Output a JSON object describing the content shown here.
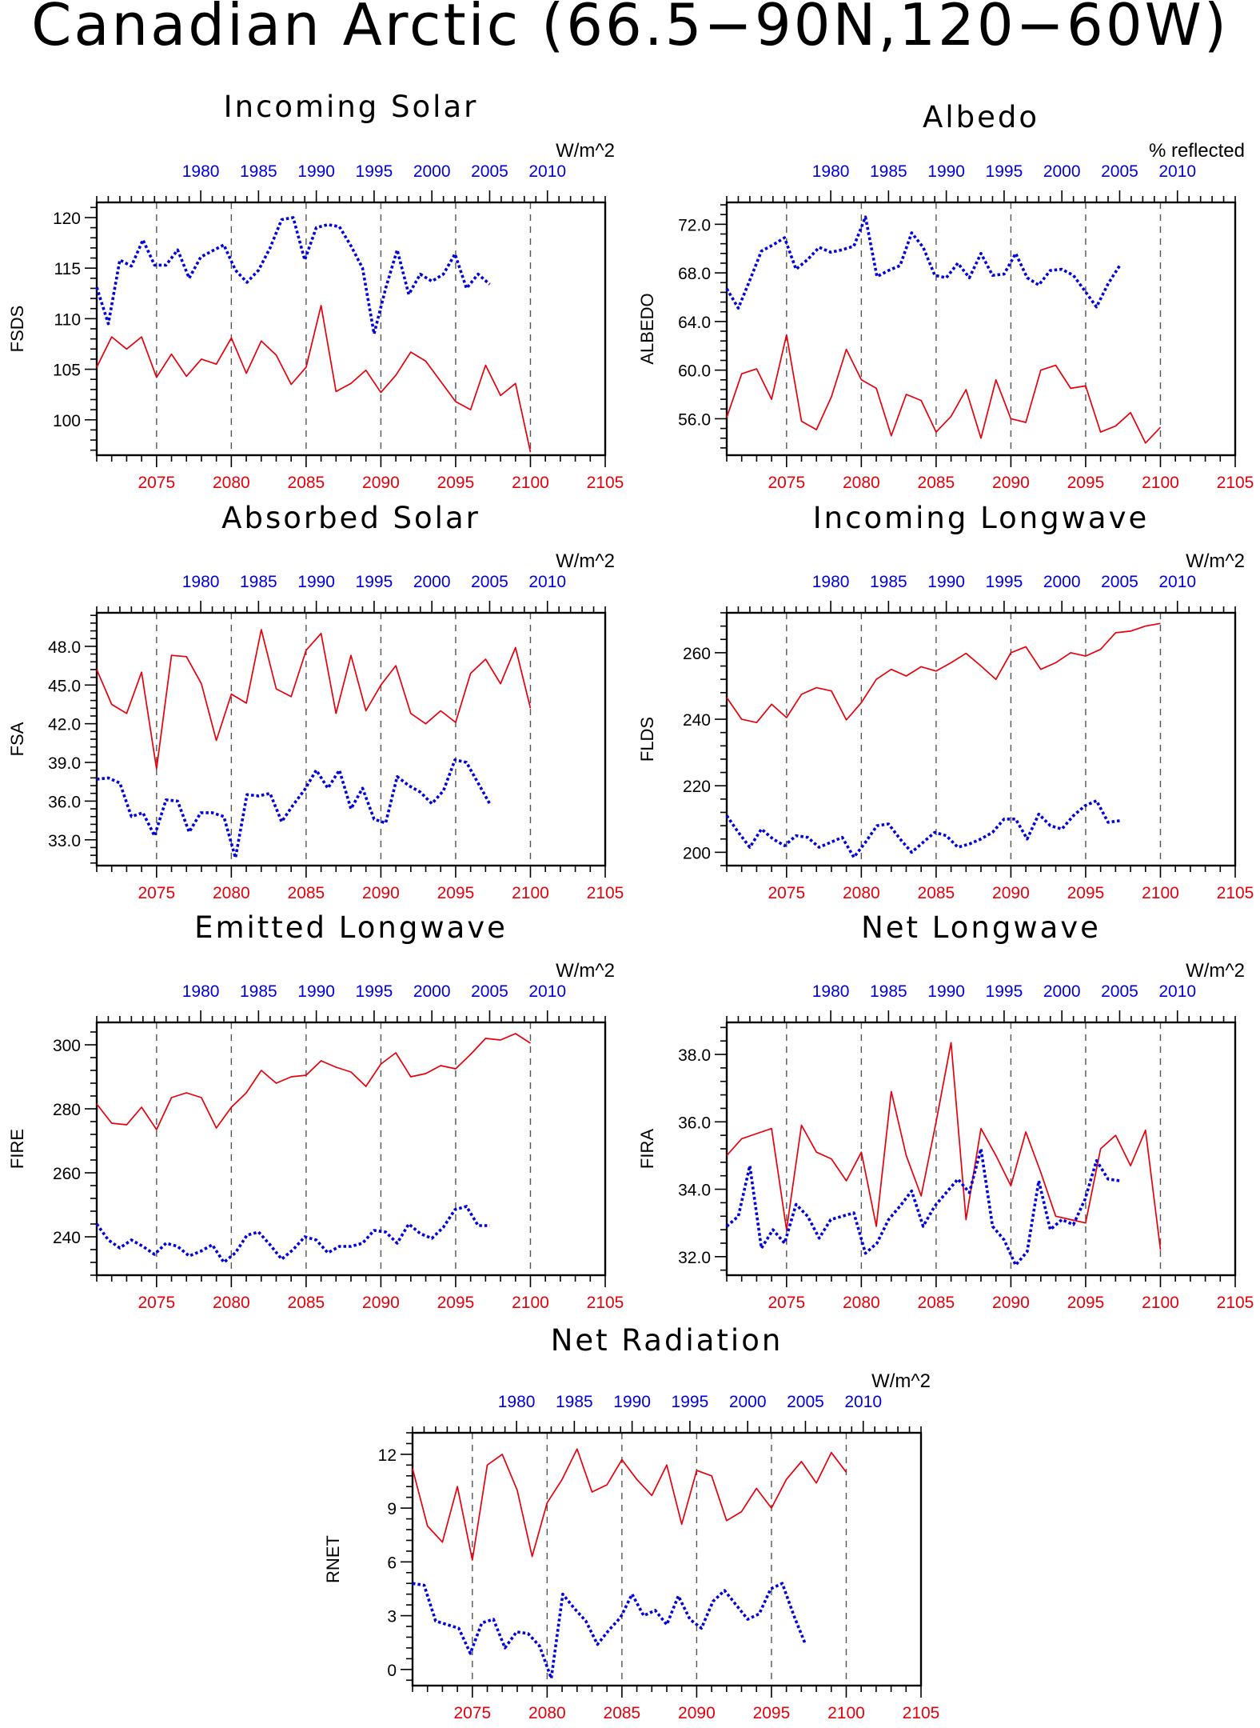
{
  "figure_title": "Canadian Arctic (66.5−90N,120−60W)",
  "colors": {
    "future": "#e8000b",
    "historical": "#0000dd",
    "axis": "#000000"
  },
  "chart_data": [
    {
      "id": "fsds",
      "type": "line",
      "title": "Incoming Solar",
      "units": "W/m^2",
      "ylabel": "FSDS",
      "ylim": [
        96.5,
        121.5
      ],
      "yticks": [
        100,
        105,
        110,
        115,
        120
      ],
      "ydecimals": 0,
      "top_axis": {
        "range": [
          1971,
          2015
        ],
        "ticks": [
          1980,
          1985,
          1990,
          1995,
          2000,
          2005,
          2010
        ]
      },
      "bottom_axis": {
        "range": [
          2071,
          2105
        ],
        "ticks": [
          2075,
          2080,
          2085,
          2090,
          2095,
          2100,
          2105
        ]
      },
      "series": [
        {
          "style": "future",
          "x_start": 2071,
          "values": [
            105.2,
            108.2,
            107.0,
            108.2,
            104.2,
            106.5,
            104.3,
            106.0,
            105.5,
            108.1,
            104.6,
            107.8,
            106.4,
            103.5,
            105.2,
            111.3,
            102.8,
            103.6,
            104.9,
            102.7,
            104.4,
            106.7,
            105.8,
            103.8,
            101.8,
            101.0,
            105.4,
            102.4,
            103.6,
            96.8
          ]
        },
        {
          "style": "historical",
          "x_start": 1971,
          "values": [
            113.1,
            109.5,
            115.8,
            115.2,
            117.8,
            115.3,
            115.3,
            116.8,
            114.0,
            116.1,
            116.7,
            117.3,
            114.8,
            113.6,
            114.8,
            117.0,
            119.8,
            120.0,
            115.8,
            119.0,
            119.3,
            119.1,
            117.2,
            115.0,
            108.5,
            113.0,
            116.8,
            112.4,
            114.4,
            113.7,
            114.4,
            116.4,
            113.0,
            114.4,
            113.4
          ]
        }
      ]
    },
    {
      "id": "albedo",
      "type": "line",
      "title": "Albedo",
      "units": "% reflected",
      "ylabel": "ALBEDO",
      "ylim": [
        53.0,
        73.8
      ],
      "yticks": [
        56,
        60,
        64,
        68,
        72
      ],
      "ydecimals": 1,
      "top_axis": {
        "range": [
          1971,
          2015
        ],
        "ticks": [
          1980,
          1985,
          1990,
          1995,
          2000,
          2005,
          2010
        ]
      },
      "bottom_axis": {
        "range": [
          2071,
          2105
        ],
        "ticks": [
          2075,
          2080,
          2085,
          2090,
          2095,
          2100,
          2105
        ]
      },
      "series": [
        {
          "style": "future",
          "x_start": 2071,
          "values": [
            56.1,
            59.7,
            60.1,
            57.6,
            62.9,
            55.8,
            55.1,
            57.8,
            61.7,
            59.2,
            58.5,
            54.6,
            58.0,
            57.5,
            54.9,
            56.2,
            58.4,
            54.4,
            59.2,
            56.0,
            55.7,
            60.0,
            60.4,
            58.5,
            58.7,
            54.9,
            55.4,
            56.5,
            54.0,
            55.3
          ]
        },
        {
          "style": "historical",
          "x_start": 1971,
          "values": [
            66.7,
            65.1,
            67.4,
            69.8,
            70.3,
            70.9,
            68.3,
            69.1,
            70.1,
            69.7,
            69.9,
            70.2,
            72.6,
            67.7,
            68.2,
            68.6,
            71.3,
            70.1,
            67.8,
            67.6,
            68.8,
            67.6,
            69.6,
            67.8,
            67.9,
            69.6,
            67.6,
            67.0,
            68.2,
            68.3,
            67.8,
            66.5,
            65.2,
            67.1,
            68.6
          ]
        }
      ]
    },
    {
      "id": "fsa",
      "type": "line",
      "title": "Absorbed Solar",
      "units": "W/m^2",
      "ylabel": "FSA",
      "ylim": [
        31.0,
        50.6
      ],
      "yticks": [
        33,
        36,
        39,
        42,
        45,
        48
      ],
      "ydecimals": 1,
      "top_axis": {
        "range": [
          1971,
          2015
        ],
        "ticks": [
          1980,
          1985,
          1990,
          1995,
          2000,
          2005,
          2010
        ]
      },
      "bottom_axis": {
        "range": [
          2071,
          2105
        ],
        "ticks": [
          2075,
          2080,
          2085,
          2090,
          2095,
          2100,
          2105
        ]
      },
      "series": [
        {
          "style": "future",
          "x_start": 2071,
          "values": [
            46.2,
            43.5,
            42.8,
            46.0,
            38.5,
            47.3,
            47.2,
            45.1,
            40.7,
            44.3,
            43.6,
            49.3,
            44.7,
            44.1,
            47.7,
            49.0,
            42.8,
            47.3,
            43.0,
            45.0,
            46.5,
            42.8,
            42.0,
            43.0,
            42.1,
            45.9,
            47.0,
            45.1,
            47.9,
            43.2
          ]
        },
        {
          "style": "historical",
          "x_start": 1971,
          "values": [
            37.7,
            37.8,
            37.4,
            34.8,
            35.1,
            33.3,
            36.1,
            36.0,
            33.6,
            35.1,
            35.1,
            34.8,
            31.6,
            36.5,
            36.4,
            36.6,
            34.4,
            35.7,
            36.9,
            38.4,
            37.0,
            38.4,
            35.4,
            37.0,
            34.6,
            34.3,
            37.9,
            37.2,
            36.7,
            35.8,
            36.8,
            39.2,
            39.0,
            37.4,
            35.8
          ]
        }
      ]
    },
    {
      "id": "flds",
      "type": "line",
      "title": "Incoming Longwave",
      "units": "W/m^2",
      "ylabel": "FLDS",
      "ylim": [
        196,
        272
      ],
      "yticks": [
        200,
        220,
        240,
        260
      ],
      "ydecimals": 0,
      "top_axis": {
        "range": [
          1971,
          2015
        ],
        "ticks": [
          1980,
          1985,
          1990,
          1995,
          2000,
          2005,
          2010
        ]
      },
      "bottom_axis": {
        "range": [
          2071,
          2105
        ],
        "ticks": [
          2075,
          2080,
          2085,
          2090,
          2095,
          2100,
          2105
        ]
      },
      "series": [
        {
          "style": "future",
          "x_start": 2071,
          "values": [
            246.5,
            240.0,
            239.0,
            244.5,
            240.5,
            247.5,
            249.5,
            248.5,
            239.8,
            245.0,
            252.0,
            255.0,
            253.0,
            255.8,
            254.5,
            257.0,
            259.8,
            256.0,
            252.0,
            260.0,
            261.8,
            255.0,
            257.0,
            260.0,
            259.0,
            261.0,
            266.0,
            266.5,
            268.0,
            268.8
          ]
        },
        {
          "style": "historical",
          "x_start": 1971,
          "values": [
            211.0,
            206.0,
            201.5,
            207.0,
            204.0,
            202.0,
            205.0,
            204.5,
            201.5,
            203.0,
            204.5,
            198.5,
            203.0,
            208.0,
            208.5,
            204.0,
            200.0,
            203.0,
            206.0,
            205.0,
            201.5,
            202.5,
            204.0,
            206.0,
            210.0,
            210.0,
            204.0,
            211.5,
            208.0,
            207.0,
            211.0,
            214.0,
            215.5,
            209.0,
            209.5
          ]
        }
      ]
    },
    {
      "id": "fire",
      "type": "line",
      "title": "Emitted Longwave",
      "units": "W/m^2",
      "ylabel": "FIRE",
      "ylim": [
        228,
        307
      ],
      "yticks": [
        240,
        260,
        280,
        300
      ],
      "ydecimals": 0,
      "top_axis": {
        "range": [
          1971,
          2015
        ],
        "ticks": [
          1980,
          1985,
          1990,
          1995,
          2000,
          2005,
          2010
        ]
      },
      "bottom_axis": {
        "range": [
          2071,
          2105
        ],
        "ticks": [
          2075,
          2080,
          2085,
          2090,
          2095,
          2100,
          2105
        ]
      },
      "series": [
        {
          "style": "future",
          "x_start": 2071,
          "values": [
            281.5,
            275.5,
            275.0,
            280.5,
            273.5,
            283.5,
            285.0,
            283.5,
            274.0,
            280.5,
            285.0,
            292.0,
            288.0,
            290.0,
            290.5,
            295.0,
            293.0,
            291.5,
            287.0,
            294.0,
            297.5,
            290.0,
            291.0,
            293.5,
            292.5,
            297.0,
            302.0,
            301.5,
            303.5,
            300.5
          ]
        },
        {
          "style": "historical",
          "x_start": 1971,
          "values": [
            244.0,
            239.0,
            236.5,
            239.0,
            237.0,
            234.5,
            238.0,
            237.0,
            234.0,
            235.5,
            237.5,
            232.0,
            235.0,
            240.5,
            241.5,
            237.5,
            233.0,
            236.0,
            240.0,
            239.0,
            235.0,
            237.0,
            237.0,
            238.0,
            242.0,
            241.5,
            238.0,
            244.0,
            241.0,
            239.5,
            243.0,
            248.5,
            249.5,
            243.5,
            243.5
          ]
        }
      ]
    },
    {
      "id": "fira",
      "type": "line",
      "title": "Net Longwave",
      "units": "W/m^2",
      "ylabel": "FIRA",
      "ylim": [
        31.45,
        38.95
      ],
      "yticks": [
        32,
        34,
        36,
        38
      ],
      "ydecimals": 1,
      "top_axis": {
        "range": [
          1971,
          2015
        ],
        "ticks": [
          1980,
          1985,
          1990,
          1995,
          2000,
          2005,
          2010
        ]
      },
      "bottom_axis": {
        "range": [
          2071,
          2105
        ],
        "ticks": [
          2075,
          2080,
          2085,
          2090,
          2095,
          2100,
          2105
        ]
      },
      "series": [
        {
          "style": "future",
          "x_start": 2071,
          "values": [
            35.0,
            35.5,
            35.65,
            35.8,
            32.8,
            35.9,
            35.1,
            34.9,
            34.25,
            35.1,
            32.9,
            36.9,
            35.0,
            33.8,
            36.0,
            38.35,
            33.1,
            35.8,
            35.0,
            34.1,
            35.7,
            34.5,
            33.2,
            33.1,
            33.0,
            35.2,
            35.6,
            34.7,
            35.75,
            32.2
          ]
        },
        {
          "style": "historical",
          "x_start": 1971,
          "values": [
            32.9,
            33.2,
            34.7,
            32.25,
            32.8,
            32.4,
            33.55,
            33.2,
            32.55,
            33.1,
            33.2,
            33.3,
            32.1,
            32.4,
            33.1,
            33.5,
            33.95,
            32.9,
            33.5,
            33.9,
            34.3,
            33.9,
            35.2,
            32.9,
            32.5,
            31.75,
            32.15,
            34.25,
            32.8,
            33.1,
            32.95,
            33.7,
            34.85,
            34.3,
            34.25
          ]
        }
      ]
    },
    {
      "id": "rnet",
      "type": "line",
      "title": "Net Radiation",
      "units": "W/m^2",
      "ylabel": "RNET",
      "ylim": [
        -0.9,
        13.2
      ],
      "yticks": [
        0,
        3,
        6,
        9,
        12
      ],
      "ydecimals": 0,
      "top_axis": {
        "range": [
          1971,
          2015
        ],
        "ticks": [
          1980,
          1985,
          1990,
          1995,
          2000,
          2005,
          2010
        ]
      },
      "bottom_axis": {
        "range": [
          2071,
          2105
        ],
        "ticks": [
          2075,
          2080,
          2085,
          2090,
          2095,
          2100,
          2105
        ]
      },
      "series": [
        {
          "style": "future",
          "x_start": 2071,
          "values": [
            11.2,
            8.0,
            7.1,
            10.2,
            6.1,
            11.4,
            12.0,
            10.0,
            6.3,
            9.3,
            10.6,
            12.3,
            9.9,
            10.3,
            11.7,
            10.6,
            9.7,
            11.4,
            8.1,
            11.1,
            10.8,
            8.3,
            8.8,
            10.1,
            9.0,
            10.6,
            11.6,
            10.4,
            12.1,
            11.0
          ]
        },
        {
          "style": "historical",
          "x_start": 1971,
          "values": [
            4.8,
            4.7,
            2.7,
            2.5,
            2.3,
            0.9,
            2.6,
            2.8,
            1.2,
            2.1,
            2.0,
            1.3,
            -0.5,
            4.2,
            3.4,
            2.7,
            1.4,
            2.2,
            2.9,
            4.2,
            3.0,
            3.3,
            2.5,
            4.1,
            2.8,
            2.3,
            3.8,
            4.4,
            3.6,
            2.8,
            3.1,
            4.5,
            4.8,
            3.0,
            1.4
          ]
        }
      ]
    }
  ]
}
